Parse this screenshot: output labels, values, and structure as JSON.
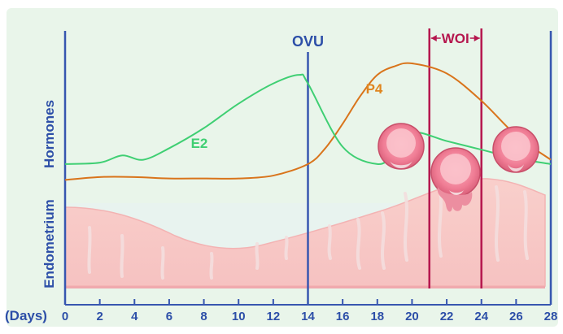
{
  "labels": {
    "days_unit": "(Days)",
    "hormones_axis": "Hormones",
    "endometrium_axis": "Endometrium",
    "ovulation": "OVU",
    "woi": "WOI",
    "e2": "E2",
    "p4": "P4"
  },
  "colors": {
    "background": "#e9f5ea",
    "axis": "#3756b0",
    "text_blue": "#2d4fa8",
    "e2": "#3fcf73",
    "p4": "#d9741b",
    "woi": "#b5174e",
    "endometrium": "#f7c9c6",
    "embryo": "#f07d95"
  },
  "chart_data": {
    "type": "line",
    "x_axis": {
      "label": "(Days)",
      "range": [
        0,
        28
      ],
      "ticks": [
        0,
        2,
        4,
        6,
        8,
        10,
        12,
        14,
        16,
        18,
        20,
        22,
        24,
        26,
        28
      ]
    },
    "y_axis_labels": [
      "Hormones",
      "Endometrium"
    ],
    "markers": [
      {
        "label": "OVU",
        "day": 14
      },
      {
        "label": "WOI",
        "start_day": 21,
        "end_day": 24
      }
    ],
    "series": [
      {
        "name": "E2",
        "x": [
          0,
          2,
          3.3,
          4.5,
          6,
          8,
          10,
          12,
          13.5,
          14,
          16,
          18,
          19,
          20,
          22,
          24,
          26,
          28
        ],
        "y": [
          0.3,
          0.31,
          0.36,
          0.33,
          0.41,
          0.55,
          0.72,
          0.86,
          0.92,
          0.86,
          0.42,
          0.3,
          0.38,
          0.52,
          0.46,
          0.4,
          0.34,
          0.3
        ]
      },
      {
        "name": "P4",
        "x": [
          0,
          2,
          4,
          6,
          8,
          10,
          12,
          14,
          15,
          16,
          17,
          18,
          19,
          20,
          22,
          24,
          26,
          28
        ],
        "y": [
          0.19,
          0.21,
          0.21,
          0.2,
          0.2,
          0.2,
          0.22,
          0.3,
          0.41,
          0.58,
          0.77,
          0.92,
          0.98,
          1.0,
          0.93,
          0.74,
          0.5,
          0.33
        ]
      }
    ]
  }
}
